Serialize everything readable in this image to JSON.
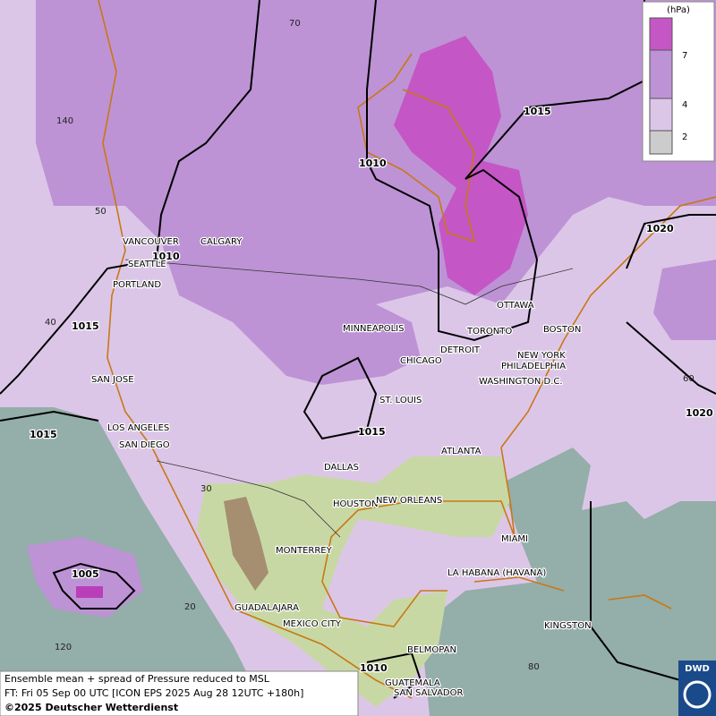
{
  "cities": [
    "VANCOUVER",
    "CALGARY",
    "SEATTLE",
    "PORTLAND",
    "MINNEAPOLIS",
    "OTTAWA",
    "TORONTO",
    "DETROIT",
    "BOSTON",
    "NEW YORK",
    "PHILADELPHIA",
    "CHICAGO",
    "WASHINGTON D.C.",
    "SAN JOSE",
    "ST. LOUIS",
    "LOS ANGELES",
    "SAN DIEGO",
    "ATLANTA",
    "DALLAS",
    "HOUSTON",
    "NEW ORLEANS",
    "MIAMI",
    "MONTERREY",
    "LA HABANA (HAVANA)",
    "GUADALAJARA",
    "KINGSTON",
    "MEXICO CITY",
    "BELMOPAN",
    "GUATEMALA",
    "SAN SALVADOR"
  ],
  "isobars": [
    "1010",
    "1015",
    "1010",
    "1015",
    "1020",
    "1015",
    "1015",
    "1020",
    "1005",
    "1010"
  ],
  "graticule": [
    "70",
    "140",
    "50",
    "40",
    "30",
    "60",
    "20",
    "120",
    "80"
  ],
  "legend": {
    "unit": "(hPa)",
    "ticks": [
      "7",
      "4",
      "2"
    ]
  },
  "footer": [
    "Ensemble mean + spread of Pressure reduced to MSL",
    "FT: Fri 05 Sep 00 UTC [ICON EPS 2025 Aug 28 12UTC +180h]",
    "©2025 Deutscher Wetterdienst"
  ],
  "logo": "DWD"
}
